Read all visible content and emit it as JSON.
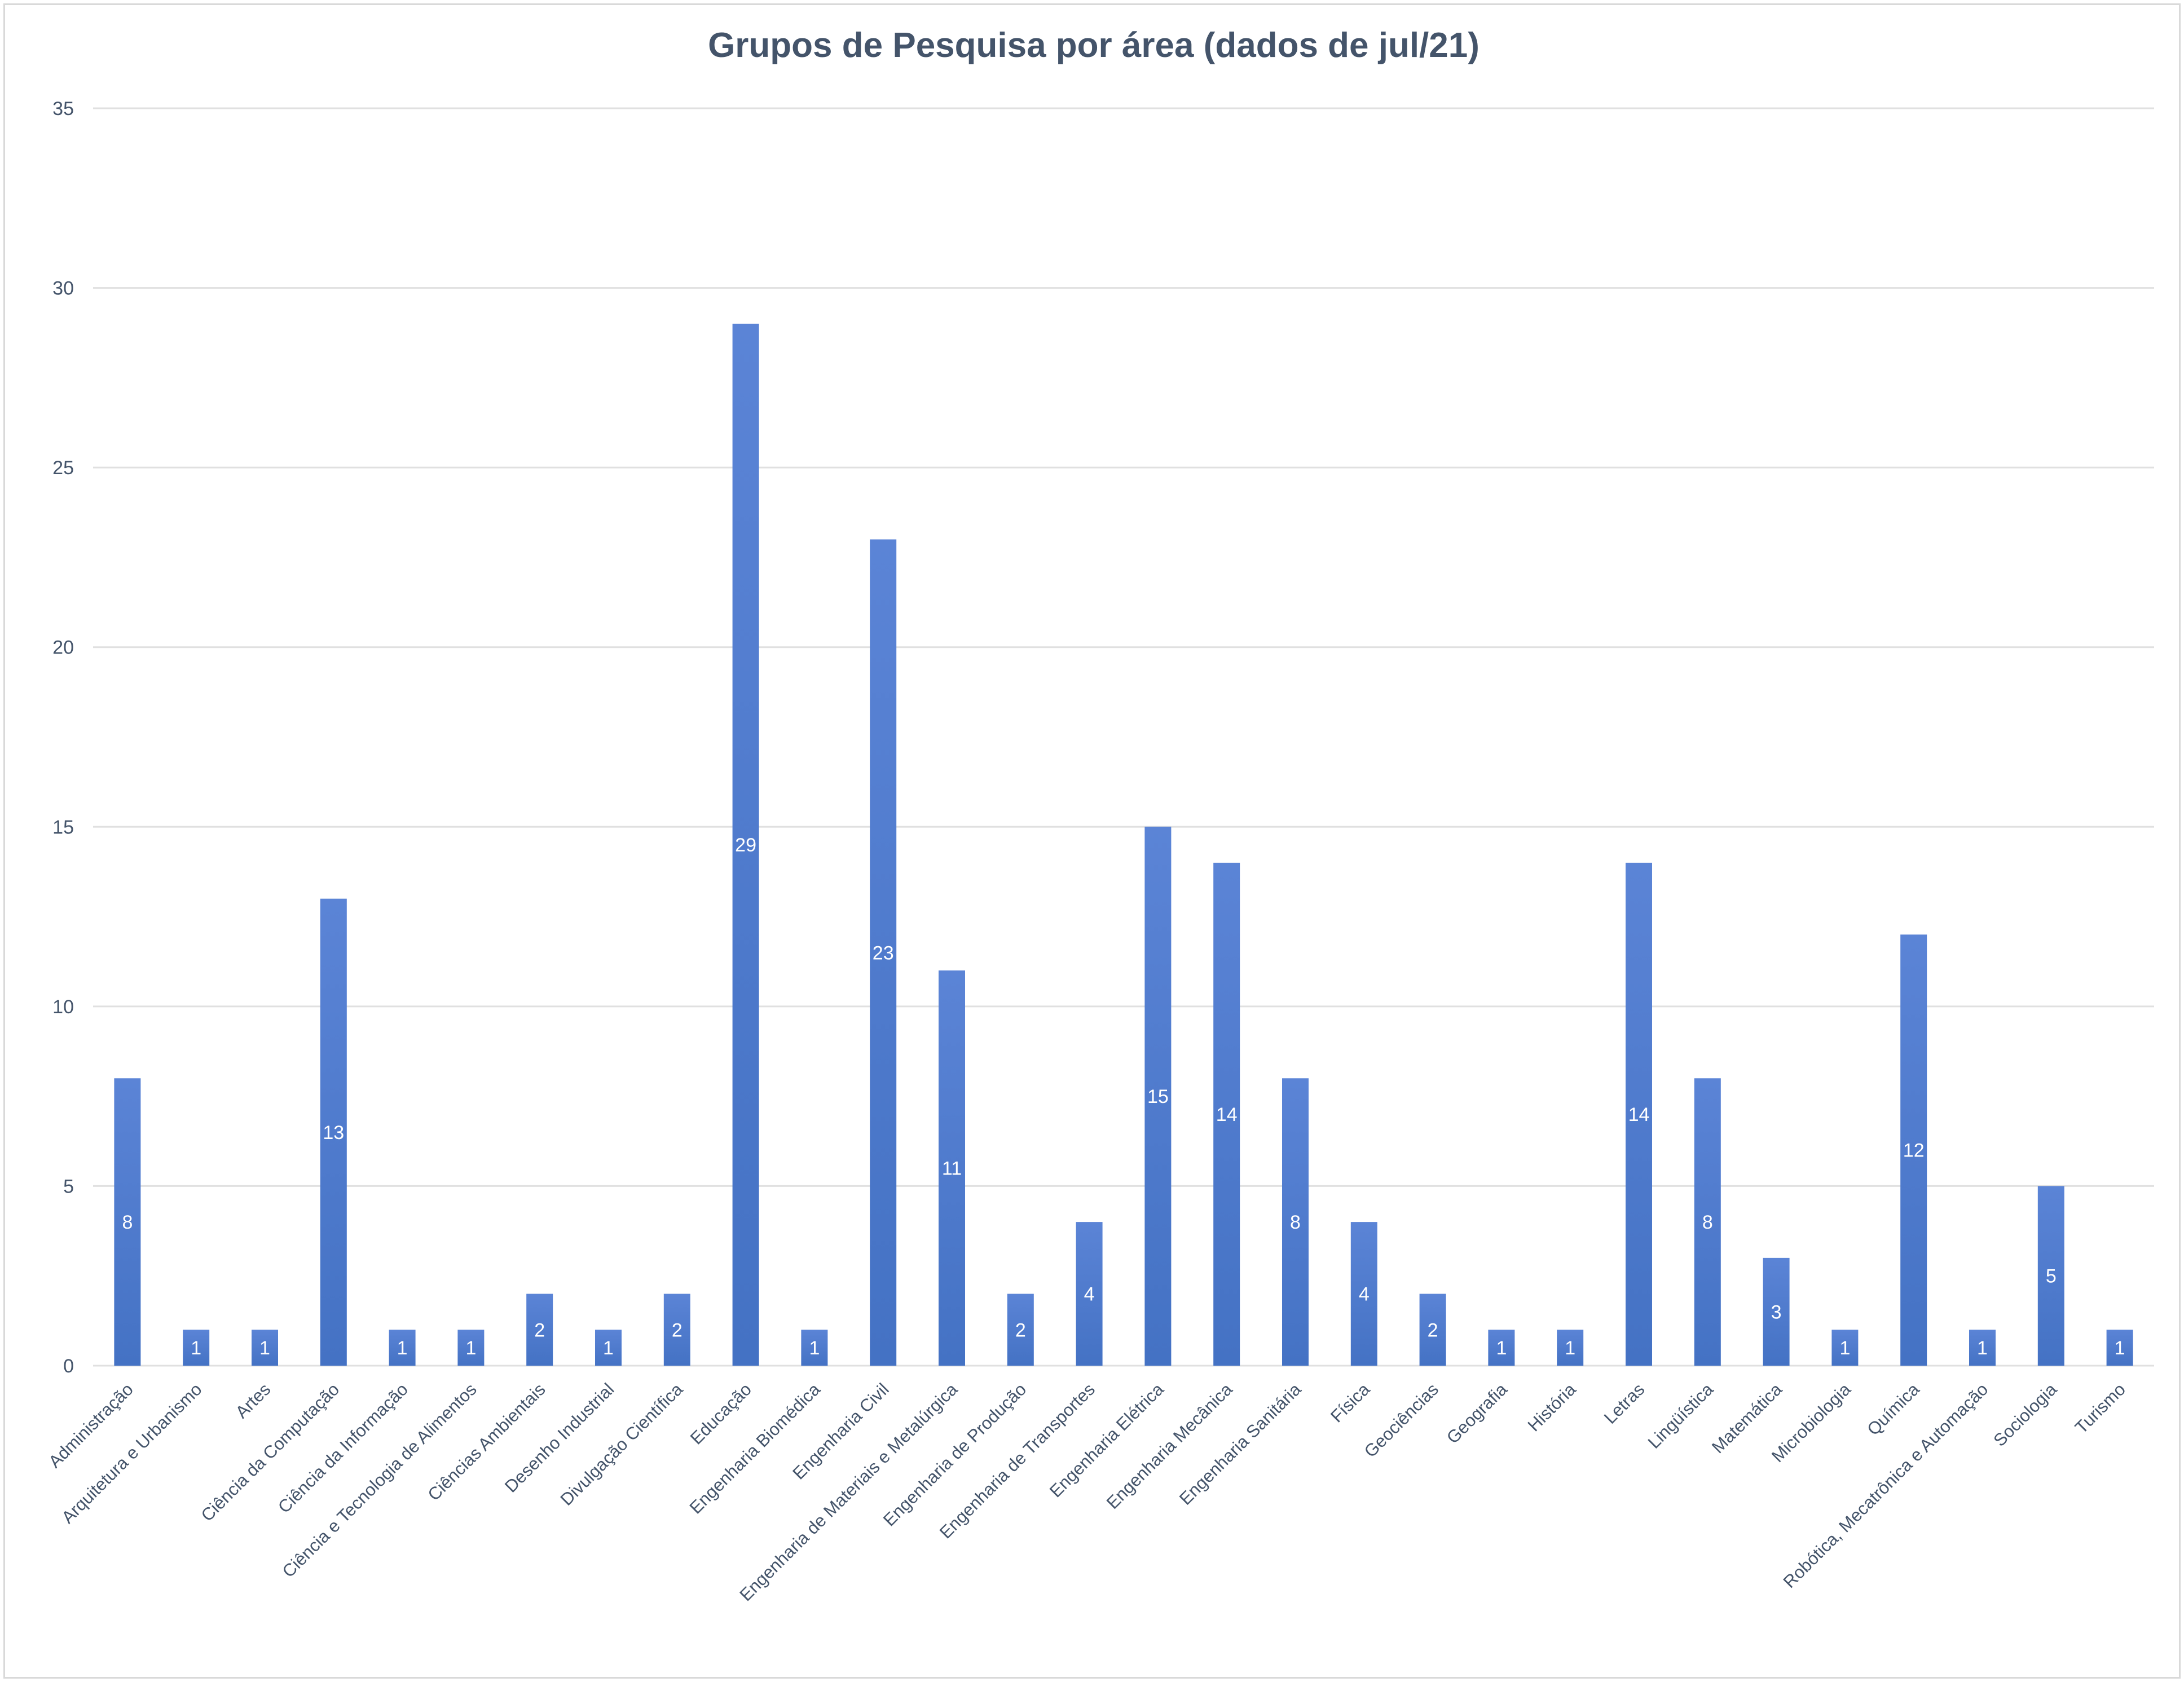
{
  "chart_data": {
    "type": "bar",
    "title": "Grupos de Pesquisa por área (dados de jul/21)",
    "xlabel": "",
    "ylabel": "",
    "ylim": [
      0,
      35
    ],
    "yticks": [
      0,
      5,
      10,
      15,
      20,
      25,
      30,
      35
    ],
    "grid": "horizontal",
    "legend": "none",
    "bar_color": "#4472c4",
    "bar_color_light": "#5b84d6",
    "data_label_color": "#ffffff",
    "categories": [
      "Administração",
      "Arquitetura e Urbanismo",
      "Artes",
      "Ciência da Computação",
      "Ciência da Informação",
      "Ciência e Tecnologia de Alimentos",
      "Ciências Ambientais",
      "Desenho Industrial",
      "Divulgação Científica",
      "Educação",
      "Engenharia Biomédica",
      "Engenharia Civil",
      "Engenharia de Materiais e Metalúrgica",
      "Engenharia de Produção",
      "Engenharia de Transportes",
      "Engenharia Elétrica",
      "Engenharia Mecânica",
      "Engenharia Sanitária",
      "Física",
      "Geociências",
      "Geografia",
      "História",
      "Letras",
      "Lingüística",
      "Matemática",
      "Microbiologia",
      "Química",
      "Robótica, Mecatrônica e Automação",
      "Sociologia",
      "Turismo"
    ],
    "values": [
      8,
      1,
      1,
      13,
      1,
      1,
      2,
      1,
      2,
      29,
      1,
      23,
      11,
      2,
      4,
      15,
      14,
      8,
      4,
      2,
      1,
      1,
      14,
      8,
      3,
      1,
      12,
      1,
      5,
      1
    ]
  }
}
